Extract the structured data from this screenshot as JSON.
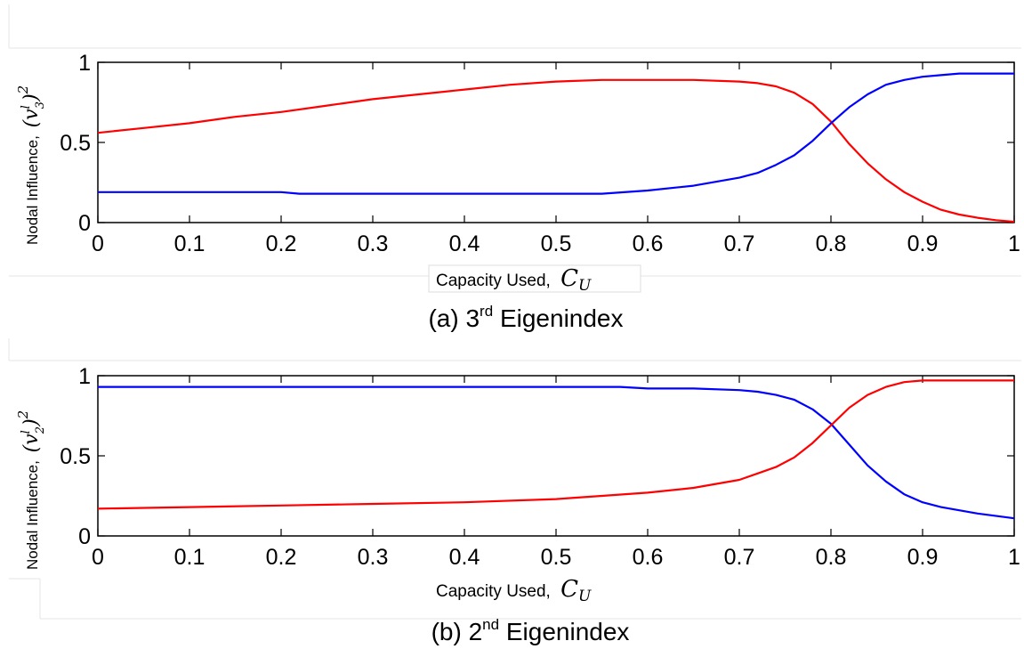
{
  "chart_data": [
    {
      "type": "line",
      "caption": {
        "prefix": "(a) 3",
        "sup": "rd",
        "suffix": " Eigenindex"
      },
      "ylabel": "Nodal Influence,",
      "ylabel_math": {
        "base": "(v",
        "sup": "l",
        "sub": "3",
        "close": ")",
        "power": "2"
      },
      "xlabel": "Capacity Used,",
      "xlabel_math": {
        "base": "C",
        "sub": "U"
      },
      "xlim": [
        0,
        1
      ],
      "ylim": [
        0,
        1
      ],
      "xticks": [
        "0",
        "0.1",
        "0.2",
        "0.3",
        "0.4",
        "0.5",
        "0.6",
        "0.7",
        "0.8",
        "0.9",
        "1"
      ],
      "yticks": [
        "0",
        "0.5",
        "1"
      ],
      "series": [
        {
          "color": "#ff0000",
          "x": [
            0,
            0.05,
            0.1,
            0.15,
            0.2,
            0.25,
            0.3,
            0.35,
            0.4,
            0.45,
            0.5,
            0.55,
            0.6,
            0.65,
            0.7,
            0.72,
            0.74,
            0.76,
            0.78,
            0.8,
            0.82,
            0.84,
            0.86,
            0.88,
            0.9,
            0.92,
            0.94,
            0.96,
            0.98,
            1.0
          ],
          "y": [
            0.56,
            0.59,
            0.62,
            0.66,
            0.69,
            0.73,
            0.77,
            0.8,
            0.83,
            0.86,
            0.88,
            0.89,
            0.89,
            0.89,
            0.88,
            0.87,
            0.85,
            0.81,
            0.74,
            0.63,
            0.49,
            0.37,
            0.27,
            0.19,
            0.13,
            0.08,
            0.05,
            0.03,
            0.015,
            0.005
          ]
        },
        {
          "color": "#0000ff",
          "x": [
            0,
            0.1,
            0.2,
            0.22,
            0.3,
            0.4,
            0.5,
            0.55,
            0.6,
            0.65,
            0.7,
            0.72,
            0.74,
            0.76,
            0.78,
            0.8,
            0.82,
            0.84,
            0.86,
            0.88,
            0.9,
            0.92,
            0.94,
            0.96,
            1.0
          ],
          "y": [
            0.19,
            0.19,
            0.19,
            0.18,
            0.18,
            0.18,
            0.18,
            0.18,
            0.2,
            0.23,
            0.28,
            0.31,
            0.36,
            0.42,
            0.51,
            0.62,
            0.72,
            0.8,
            0.86,
            0.89,
            0.91,
            0.92,
            0.93,
            0.93,
            0.93
          ]
        }
      ]
    },
    {
      "type": "line",
      "caption": {
        "prefix": "(b) 2",
        "sup": "nd",
        "suffix": " Eigenindex"
      },
      "ylabel": "Nodal Influence,",
      "ylabel_math": {
        "base": "(v",
        "sup": "l",
        "sub": "2",
        "close": ")",
        "power": "2"
      },
      "xlabel": "Capacity Used,",
      "xlabel_math": {
        "base": "C",
        "sub": "U"
      },
      "xlim": [
        0,
        1
      ],
      "ylim": [
        0,
        1
      ],
      "xticks": [
        "0",
        "0.1",
        "0.2",
        "0.3",
        "0.4",
        "0.5",
        "0.6",
        "0.7",
        "0.8",
        "0.9",
        "1"
      ],
      "yticks": [
        "0",
        "0.5",
        "1"
      ],
      "series": [
        {
          "color": "#0000ff",
          "x": [
            0,
            0.1,
            0.2,
            0.3,
            0.4,
            0.5,
            0.57,
            0.6,
            0.65,
            0.7,
            0.72,
            0.74,
            0.76,
            0.78,
            0.8,
            0.82,
            0.84,
            0.86,
            0.88,
            0.9,
            0.92,
            0.94,
            0.96,
            1.0
          ],
          "y": [
            0.93,
            0.93,
            0.93,
            0.93,
            0.93,
            0.93,
            0.93,
            0.92,
            0.92,
            0.91,
            0.9,
            0.88,
            0.85,
            0.79,
            0.7,
            0.57,
            0.44,
            0.34,
            0.26,
            0.21,
            0.18,
            0.16,
            0.14,
            0.11
          ]
        },
        {
          "color": "#ff0000",
          "x": [
            0,
            0.1,
            0.2,
            0.3,
            0.4,
            0.5,
            0.55,
            0.6,
            0.65,
            0.7,
            0.72,
            0.74,
            0.76,
            0.78,
            0.8,
            0.82,
            0.84,
            0.86,
            0.88,
            0.9,
            0.92,
            0.94,
            1.0
          ],
          "y": [
            0.17,
            0.18,
            0.19,
            0.2,
            0.21,
            0.23,
            0.25,
            0.27,
            0.3,
            0.35,
            0.39,
            0.43,
            0.49,
            0.58,
            0.69,
            0.8,
            0.88,
            0.93,
            0.96,
            0.97,
            0.97,
            0.97,
            0.97
          ]
        }
      ]
    }
  ]
}
